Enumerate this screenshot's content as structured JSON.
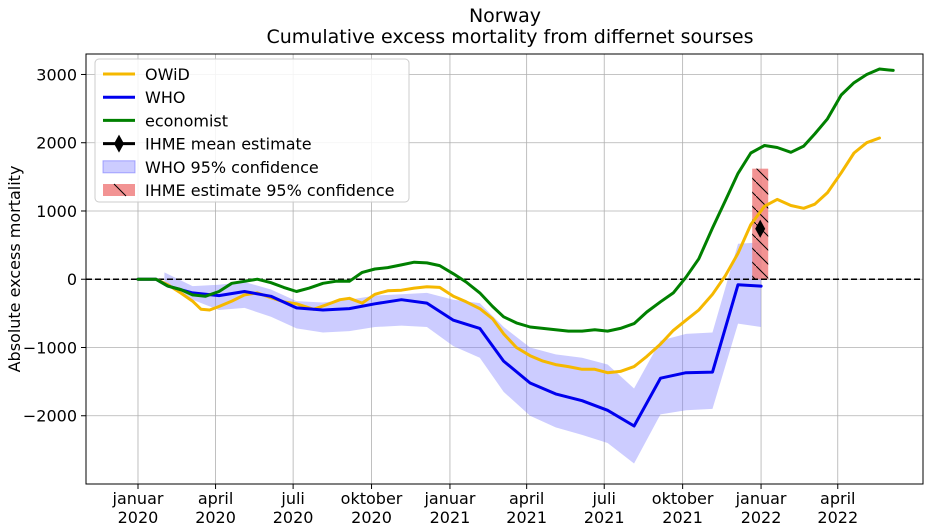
{
  "chart_data": {
    "type": "line",
    "title": "Norway",
    "subtitle": "Cumulative excess mortality from differnet sourses",
    "xlabel": "",
    "ylabel": "Absolute excess mortality",
    "xlim": [
      "2019-11-01",
      "2022-07-10"
    ],
    "ylim": [
      -3000,
      3300
    ],
    "yticks": [
      -2000,
      -1000,
      0,
      1000,
      2000,
      3000
    ],
    "xticks": [
      {
        "date": "2020-01-01",
        "line1": "januar",
        "line2": "2020"
      },
      {
        "date": "2020-04-01",
        "line1": "april",
        "line2": "2020"
      },
      {
        "date": "2020-07-01",
        "line1": "juli",
        "line2": "2020"
      },
      {
        "date": "2020-10-01",
        "line1": "oktober",
        "line2": "2020"
      },
      {
        "date": "2021-01-01",
        "line1": "januar",
        "line2": "2021"
      },
      {
        "date": "2021-04-01",
        "line1": "april",
        "line2": "2021"
      },
      {
        "date": "2021-07-01",
        "line1": "juli",
        "line2": "2021"
      },
      {
        "date": "2021-10-01",
        "line1": "oktober",
        "line2": "2021"
      },
      {
        "date": "2022-01-01",
        "line1": "januar",
        "line2": "2022"
      },
      {
        "date": "2022-04-01",
        "line1": "april",
        "line2": "2022"
      }
    ],
    "grid": true,
    "zero_line": "dashed",
    "legend_placement": "top-left",
    "legend": [
      {
        "label": "OWiD",
        "kind": "line",
        "color": "#f5b800"
      },
      {
        "label": "WHO",
        "kind": "line",
        "color": "#0000ee"
      },
      {
        "label": "economist",
        "kind": "line",
        "color": "#008000"
      },
      {
        "label": "IHME mean estimate",
        "kind": "diamond",
        "color": "#000000"
      },
      {
        "label": "WHO 95% confidence",
        "kind": "band",
        "color": "#8080ff"
      },
      {
        "label": " IHME estimate 95% confidence",
        "kind": "hatched-bar",
        "color": "#f08080"
      }
    ],
    "series": [
      {
        "key": "owid",
        "color": "#f5b800",
        "points": [
          [
            "2020-01-01",
            0
          ],
          [
            "2020-01-22",
            0
          ],
          [
            "2020-02-05",
            -80
          ],
          [
            "2020-02-20",
            -200
          ],
          [
            "2020-03-05",
            -320
          ],
          [
            "2020-03-15",
            -440
          ],
          [
            "2020-03-25",
            -450
          ],
          [
            "2020-04-05",
            -400
          ],
          [
            "2020-04-20",
            -320
          ],
          [
            "2020-05-05",
            -230
          ],
          [
            "2020-05-20",
            -200
          ],
          [
            "2020-06-05",
            -270
          ],
          [
            "2020-06-20",
            -330
          ],
          [
            "2020-07-05",
            -360
          ],
          [
            "2020-07-25",
            -440
          ],
          [
            "2020-08-10",
            -370
          ],
          [
            "2020-08-25",
            -300
          ],
          [
            "2020-09-05",
            -280
          ],
          [
            "2020-09-20",
            -350
          ],
          [
            "2020-10-05",
            -220
          ],
          [
            "2020-10-20",
            -170
          ],
          [
            "2020-11-05",
            -160
          ],
          [
            "2020-11-20",
            -130
          ],
          [
            "2020-12-05",
            -110
          ],
          [
            "2020-12-20",
            -120
          ],
          [
            "2021-01-05",
            -250
          ],
          [
            "2021-01-20",
            -330
          ],
          [
            "2021-02-05",
            -430
          ],
          [
            "2021-02-20",
            -580
          ],
          [
            "2021-03-05",
            -800
          ],
          [
            "2021-03-20",
            -1000
          ],
          [
            "2021-04-05",
            -1120
          ],
          [
            "2021-04-20",
            -1200
          ],
          [
            "2021-05-05",
            -1250
          ],
          [
            "2021-05-20",
            -1280
          ],
          [
            "2021-06-05",
            -1320
          ],
          [
            "2021-06-20",
            -1320
          ],
          [
            "2021-07-05",
            -1370
          ],
          [
            "2021-07-20",
            -1350
          ],
          [
            "2021-08-05",
            -1280
          ],
          [
            "2021-08-20",
            -1130
          ],
          [
            "2021-09-05",
            -950
          ],
          [
            "2021-09-20",
            -750
          ],
          [
            "2021-10-05",
            -600
          ],
          [
            "2021-10-20",
            -450
          ],
          [
            "2021-11-05",
            -220
          ],
          [
            "2021-11-20",
            50
          ],
          [
            "2021-12-05",
            380
          ],
          [
            "2021-12-20",
            800
          ],
          [
            "2022-01-05",
            1070
          ],
          [
            "2022-01-20",
            1170
          ],
          [
            "2022-02-05",
            1080
          ],
          [
            "2022-02-20",
            1040
          ],
          [
            "2022-03-05",
            1100
          ],
          [
            "2022-03-20",
            1270
          ],
          [
            "2022-04-05",
            1560
          ],
          [
            "2022-04-20",
            1850
          ],
          [
            "2022-05-05",
            2000
          ],
          [
            "2022-05-20",
            2070
          ]
        ]
      },
      {
        "key": "who",
        "color": "#0000ee",
        "points": [
          [
            "2020-01-01",
            0
          ],
          [
            "2020-01-22",
            0
          ],
          [
            "2020-02-05",
            -100
          ],
          [
            "2020-03-05",
            -200
          ],
          [
            "2020-04-05",
            -240
          ],
          [
            "2020-05-05",
            -180
          ],
          [
            "2020-06-05",
            -250
          ],
          [
            "2020-07-05",
            -420
          ],
          [
            "2020-08-05",
            -450
          ],
          [
            "2020-09-05",
            -430
          ],
          [
            "2020-10-05",
            -360
          ],
          [
            "2020-11-05",
            -300
          ],
          [
            "2020-12-05",
            -350
          ],
          [
            "2021-01-05",
            -600
          ],
          [
            "2021-02-05",
            -720
          ],
          [
            "2021-03-05",
            -1200
          ],
          [
            "2021-04-05",
            -1520
          ],
          [
            "2021-05-05",
            -1680
          ],
          [
            "2021-06-05",
            -1780
          ],
          [
            "2021-07-05",
            -1920
          ],
          [
            "2021-08-05",
            -2150
          ],
          [
            "2021-09-05",
            -1450
          ],
          [
            "2021-10-05",
            -1370
          ],
          [
            "2021-11-05",
            -1360
          ],
          [
            "2021-12-05",
            -80
          ],
          [
            "2022-01-01",
            -100
          ]
        ]
      },
      {
        "key": "economist",
        "color": "#008000",
        "points": [
          [
            "2020-01-01",
            0
          ],
          [
            "2020-01-22",
            0
          ],
          [
            "2020-02-05",
            -100
          ],
          [
            "2020-02-20",
            -150
          ],
          [
            "2020-03-05",
            -230
          ],
          [
            "2020-03-20",
            -250
          ],
          [
            "2020-04-05",
            -180
          ],
          [
            "2020-04-20",
            -60
          ],
          [
            "2020-05-05",
            -30
          ],
          [
            "2020-05-20",
            0
          ],
          [
            "2020-06-05",
            -50
          ],
          [
            "2020-06-20",
            -120
          ],
          [
            "2020-07-05",
            -180
          ],
          [
            "2020-07-20",
            -130
          ],
          [
            "2020-08-05",
            -60
          ],
          [
            "2020-08-20",
            -30
          ],
          [
            "2020-09-05",
            -30
          ],
          [
            "2020-09-20",
            100
          ],
          [
            "2020-10-05",
            150
          ],
          [
            "2020-10-20",
            170
          ],
          [
            "2020-11-05",
            210
          ],
          [
            "2020-11-20",
            250
          ],
          [
            "2020-12-05",
            240
          ],
          [
            "2020-12-20",
            200
          ],
          [
            "2021-01-05",
            80
          ],
          [
            "2021-01-20",
            -40
          ],
          [
            "2021-02-05",
            -200
          ],
          [
            "2021-02-20",
            -400
          ],
          [
            "2021-03-05",
            -550
          ],
          [
            "2021-03-20",
            -640
          ],
          [
            "2021-04-05",
            -700
          ],
          [
            "2021-04-20",
            -720
          ],
          [
            "2021-05-05",
            -740
          ],
          [
            "2021-05-20",
            -760
          ],
          [
            "2021-06-05",
            -760
          ],
          [
            "2021-06-20",
            -740
          ],
          [
            "2021-07-05",
            -760
          ],
          [
            "2021-07-20",
            -720
          ],
          [
            "2021-08-05",
            -650
          ],
          [
            "2021-08-20",
            -480
          ],
          [
            "2021-09-05",
            -330
          ],
          [
            "2021-09-20",
            -200
          ],
          [
            "2021-10-05",
            30
          ],
          [
            "2021-10-20",
            300
          ],
          [
            "2021-11-05",
            750
          ],
          [
            "2021-11-20",
            1150
          ],
          [
            "2021-12-05",
            1550
          ],
          [
            "2021-12-20",
            1850
          ],
          [
            "2022-01-05",
            1960
          ],
          [
            "2022-01-20",
            1930
          ],
          [
            "2022-02-05",
            1860
          ],
          [
            "2022-02-20",
            1950
          ],
          [
            "2022-03-05",
            2130
          ],
          [
            "2022-03-20",
            2350
          ],
          [
            "2022-04-05",
            2700
          ],
          [
            "2022-04-20",
            2880
          ],
          [
            "2022-05-05",
            3000
          ],
          [
            "2022-05-20",
            3080
          ],
          [
            "2022-06-05",
            3060
          ]
        ]
      }
    ],
    "who_band": [
      [
        "2020-02-01",
        100,
        -50
      ],
      [
        "2020-03-05",
        -100,
        -300
      ],
      [
        "2020-04-05",
        -80,
        -450
      ],
      [
        "2020-05-05",
        -40,
        -420
      ],
      [
        "2020-06-05",
        -150,
        -550
      ],
      [
        "2020-07-05",
        -320,
        -720
      ],
      [
        "2020-08-05",
        -340,
        -780
      ],
      [
        "2020-09-05",
        -300,
        -760
      ],
      [
        "2020-10-05",
        -240,
        -700
      ],
      [
        "2020-11-05",
        -220,
        -680
      ],
      [
        "2020-12-05",
        -200,
        -700
      ],
      [
        "2021-01-05",
        -300,
        -980
      ],
      [
        "2021-02-05",
        -350,
        -1150
      ],
      [
        "2021-03-05",
        -700,
        -1650
      ],
      [
        "2021-04-05",
        -1000,
        -2000
      ],
      [
        "2021-05-05",
        -1100,
        -2170
      ],
      [
        "2021-06-05",
        -1150,
        -2280
      ],
      [
        "2021-07-05",
        -1250,
        -2400
      ],
      [
        "2021-08-05",
        -1600,
        -2700
      ],
      [
        "2021-09-05",
        -900,
        -1980
      ],
      [
        "2021-10-05",
        -800,
        -1920
      ],
      [
        "2021-11-05",
        -780,
        -1900
      ],
      [
        "2021-12-05",
        520,
        -650
      ],
      [
        "2022-01-01",
        540,
        -700
      ]
    ],
    "ihme_mean": {
      "date": "2021-12-31",
      "value": 740
    },
    "ihme_ci": {
      "date": "2021-12-31",
      "low": 0,
      "high": 1620
    }
  }
}
